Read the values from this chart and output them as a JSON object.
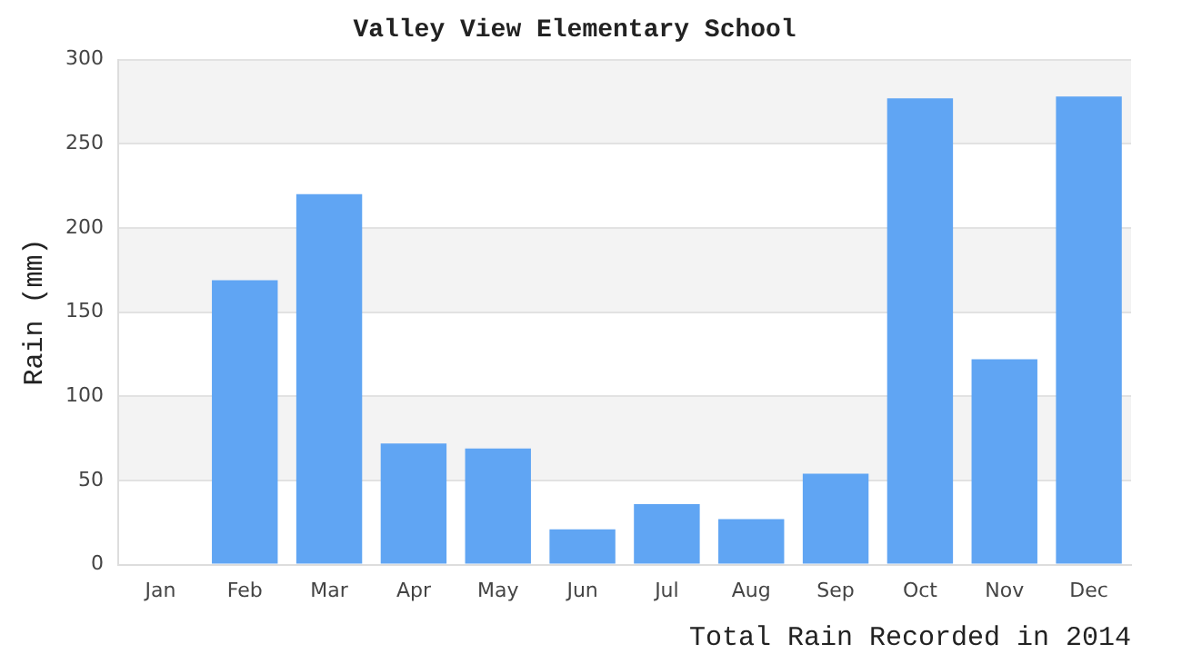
{
  "chart_data": {
    "type": "bar",
    "title": "Valley View Elementary School",
    "xlabel": "Total Rain Recorded in 2014",
    "ylabel": "Rain (mm)",
    "categories": [
      "Jan",
      "Feb",
      "Mar",
      "Apr",
      "May",
      "Jun",
      "Jul",
      "Aug",
      "Sep",
      "Oct",
      "Nov",
      "Dec"
    ],
    "values": [
      0,
      169,
      220,
      72,
      69,
      21,
      36,
      27,
      54,
      277,
      122,
      278
    ],
    "color": "#60a5f3",
    "ylim": [
      0,
      300
    ],
    "yticks": [
      0,
      50,
      100,
      150,
      200,
      250,
      300
    ],
    "grid": "y",
    "legend": false
  }
}
